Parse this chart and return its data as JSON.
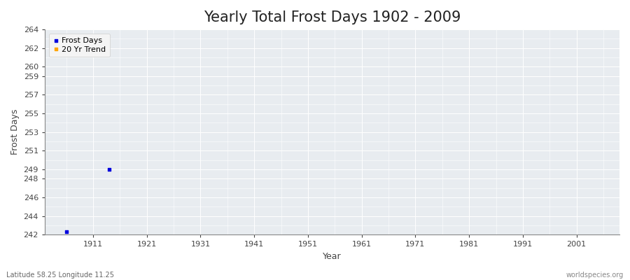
{
  "title": "Yearly Total Frost Days 1902 - 2009",
  "xlabel": "Year",
  "ylabel": "Frost Days",
  "xlim": [
    1902,
    2009
  ],
  "ylim": [
    242,
    264
  ],
  "yticks": [
    242,
    244,
    246,
    248,
    249,
    251,
    253,
    255,
    257,
    259,
    260,
    262,
    264
  ],
  "xticks": [
    1911,
    1921,
    1931,
    1941,
    1951,
    1961,
    1971,
    1981,
    1991,
    2001
  ],
  "data_points": [
    {
      "year": 1906,
      "value": 242.3
    },
    {
      "year": 1914,
      "value": 249.0
    }
  ],
  "point_color": "#0000dd",
  "trend_color": "#ffa500",
  "legend_labels": [
    "Frost Days",
    "20 Yr Trend"
  ],
  "background_color": "#e8ecf0",
  "grid_color": "#ffffff",
  "title_fontsize": 15,
  "axis_fontsize": 9,
  "tick_fontsize": 8,
  "subtitle_left": "Latitude 58.25 Longitude 11.25",
  "subtitle_right": "worldspecies.org"
}
